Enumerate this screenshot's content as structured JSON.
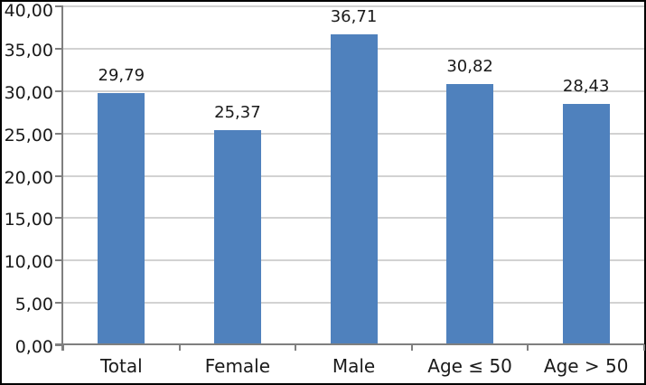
{
  "chart_data": {
    "type": "bar",
    "categories": [
      "Total",
      "Female",
      "Male",
      "Age ≤ 50",
      "Age > 50"
    ],
    "values": [
      29.79,
      25.37,
      36.71,
      30.82,
      28.43
    ],
    "data_labels": [
      "29,79",
      "25,37",
      "36,71",
      "30,82",
      "28,43"
    ],
    "y_axis": {
      "range": [
        0,
        40
      ],
      "tick_step": 5,
      "ticks": [
        0,
        5,
        10,
        15,
        20,
        25,
        30,
        35,
        40
      ],
      "tick_labels": [
        "0,00",
        "5,00",
        "10,00",
        "15,00",
        "20,00",
        "25,00",
        "30,00",
        "35,00",
        "40,00"
      ]
    },
    "grid": true,
    "legend": "none",
    "colors": {
      "bar": "#4f81bd",
      "gridline": "#d2d2d2",
      "axis": "#7f7f7f",
      "text": "#1a1a1a",
      "background": "#ffffff",
      "frame_border": "#000000"
    }
  }
}
